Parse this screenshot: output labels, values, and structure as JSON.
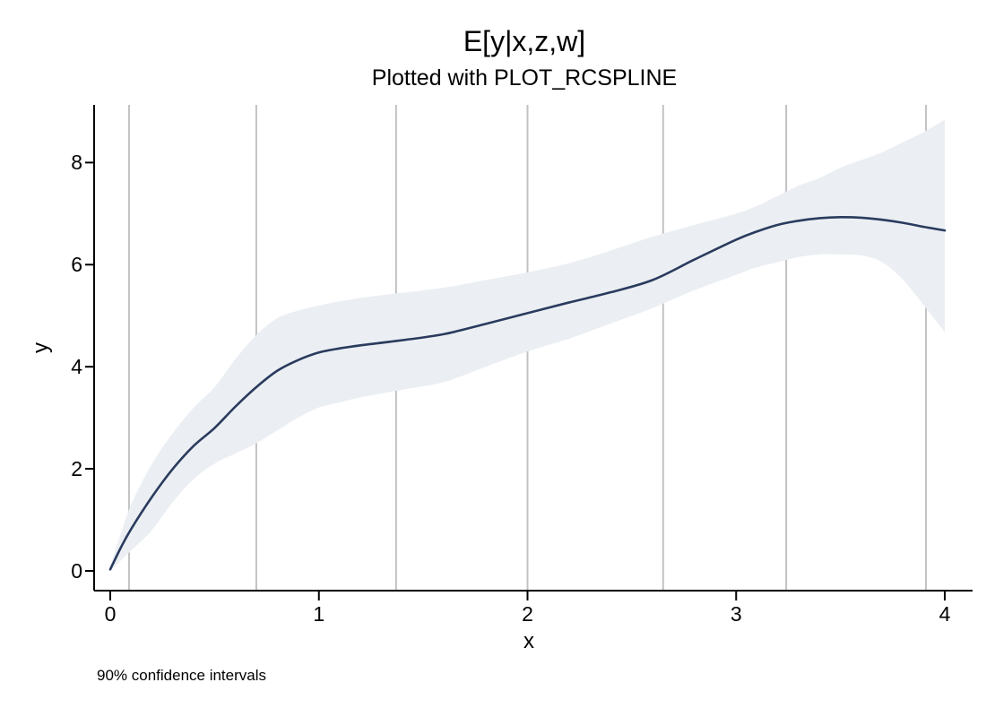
{
  "figure": {
    "title": "E[y|x,z,w]",
    "subtitle": "Plotted with PLOT_RCSPLINE",
    "note": "90% confidence intervals",
    "background_color": "#ffffff",
    "text_color": "#000000"
  },
  "chart_data": {
    "type": "line",
    "title": "E[y|x,z,w]",
    "subtitle": "Plotted with PLOT_RCSPLINE",
    "xlabel": "x",
    "ylabel": "y",
    "note": "90% confidence intervals",
    "legend_position": "none",
    "grid": "vertical lines at spline knots only",
    "xlim": [
      -0.08,
      4.13
    ],
    "ylim": [
      -0.39,
      9.12
    ],
    "x_ticks": [
      0,
      1,
      2,
      3,
      4
    ],
    "y_ticks": [
      0,
      2,
      4,
      6,
      8
    ],
    "knot_lines_x": [
      0.09,
      0.7,
      1.37,
      2.0,
      2.65,
      3.24,
      3.91
    ],
    "x": [
      0,
      0.05,
      0.1,
      0.2,
      0.3,
      0.4,
      0.5,
      0.6,
      0.7,
      0.8,
      0.9,
      1.0,
      1.1,
      1.2,
      1.4,
      1.6,
      1.8,
      2.0,
      2.2,
      2.4,
      2.6,
      2.8,
      3.0,
      3.1,
      3.2,
      3.3,
      3.4,
      3.5,
      3.6,
      3.7,
      3.8,
      3.9,
      4.0
    ],
    "series": [
      {
        "name": "fitted_spline",
        "values": [
          0.03,
          0.45,
          0.82,
          1.45,
          2.0,
          2.45,
          2.8,
          3.22,
          3.6,
          3.92,
          4.13,
          4.28,
          4.36,
          4.42,
          4.52,
          4.64,
          4.84,
          5.05,
          5.26,
          5.46,
          5.7,
          6.1,
          6.49,
          6.65,
          6.78,
          6.86,
          6.91,
          6.93,
          6.92,
          6.88,
          6.82,
          6.74,
          6.67
        ]
      },
      {
        "name": "ci90_lower",
        "values": [
          0.0,
          0.2,
          0.4,
          0.8,
          1.35,
          1.8,
          2.1,
          2.3,
          2.5,
          2.75,
          3.0,
          3.2,
          3.3,
          3.4,
          3.55,
          3.7,
          4.0,
          4.3,
          4.55,
          4.85,
          5.15,
          5.5,
          5.8,
          5.95,
          6.05,
          6.15,
          6.2,
          6.2,
          6.18,
          6.05,
          5.7,
          5.2,
          4.68
        ]
      },
      {
        "name": "ci90_upper",
        "values": [
          0.1,
          0.72,
          1.3,
          2.1,
          2.7,
          3.2,
          3.6,
          4.15,
          4.62,
          4.95,
          5.1,
          5.2,
          5.28,
          5.35,
          5.45,
          5.55,
          5.7,
          5.85,
          6.03,
          6.28,
          6.55,
          6.78,
          7.0,
          7.15,
          7.35,
          7.55,
          7.7,
          7.9,
          8.05,
          8.2,
          8.4,
          8.6,
          8.84
        ]
      }
    ],
    "colors": {
      "line": "#2a3b5e",
      "band": "#ebeff3",
      "gridline": "#c2c2c2",
      "axis": "#000000"
    }
  }
}
